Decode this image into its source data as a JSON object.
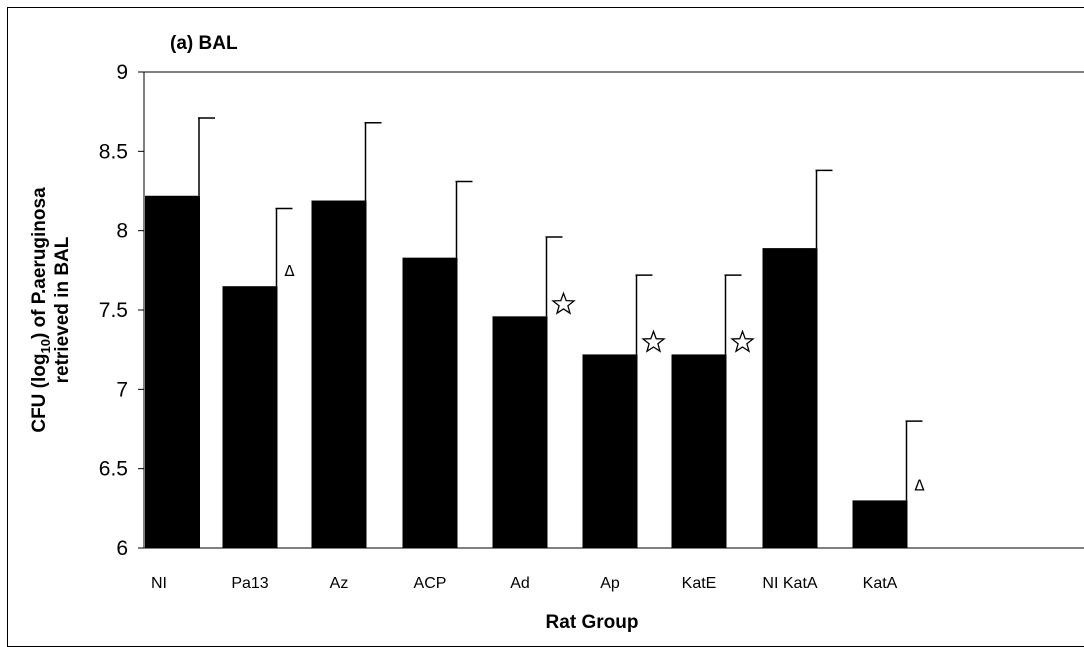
{
  "chart_data": {
    "type": "bar",
    "title": "(a) BAL",
    "xlabel": "Rat Group",
    "ylabel": {
      "prefix": "CFU (log",
      "sub": "10",
      "suffix": ") of P.aeruginosa",
      "line2": "retrieved in BAL"
    },
    "ylim": [
      6,
      9
    ],
    "yticks": [
      "6",
      "6.5",
      "7",
      "7.5",
      "8",
      "8.5",
      "9"
    ],
    "categories": [
      "NI",
      "Pa13",
      "Az",
      "ACP",
      "Ad",
      "Ap",
      "KatE",
      "NI KatA",
      "KatA"
    ],
    "values": [
      8.22,
      7.65,
      8.19,
      7.83,
      7.46,
      7.22,
      7.22,
      7.89,
      6.3
    ],
    "errors": [
      0.49,
      0.49,
      0.49,
      0.48,
      0.5,
      0.5,
      0.5,
      0.49,
      0.5
    ],
    "annotations": [
      {
        "category": "Pa13",
        "symbol": "triangle",
        "text": "Δ"
      },
      {
        "category": "Ad",
        "symbol": "star",
        "text": ""
      },
      {
        "category": "Ap",
        "symbol": "star",
        "text": ""
      },
      {
        "category": "KatE",
        "symbol": "star",
        "text": ""
      },
      {
        "category": "KatA",
        "symbol": "triangle",
        "text": "Δ"
      }
    ],
    "bar_color": "#000000",
    "grid": false,
    "legend": "none"
  }
}
